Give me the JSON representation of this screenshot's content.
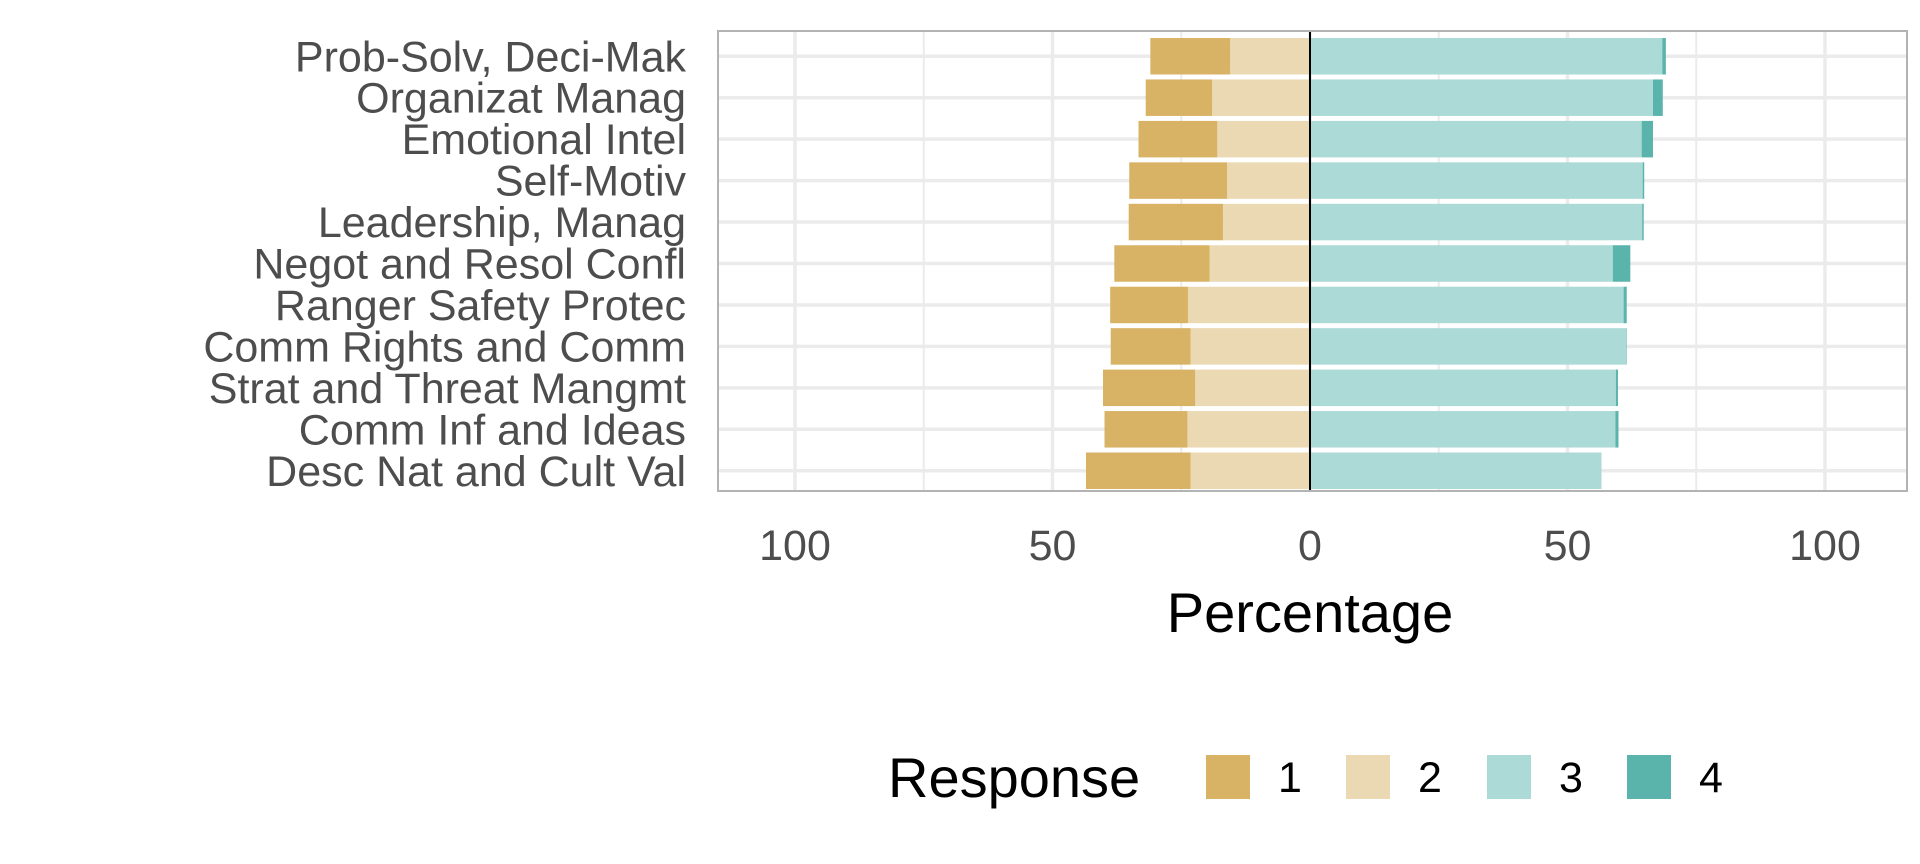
{
  "chart_data": {
    "type": "bar",
    "subtype": "diverging-stacked-horizontal",
    "title": "",
    "xlabel": "Percentage",
    "ylabel": "",
    "xlim": [
      -115,
      115
    ],
    "x_ticks": [
      -100,
      -50,
      0,
      50,
      100
    ],
    "x_tick_labels": [
      "100",
      "50",
      "0",
      "50",
      "100"
    ],
    "grid": true,
    "legend_position": "bottom",
    "legend_title": "Response",
    "categories": [
      "Prob-Solv, Deci-Mak",
      "Organizat Manag",
      "Emotional Intel",
      "Self-Motiv",
      "Leadership, Manag",
      "Negot and Resol Confl",
      "Ranger Safety Protec",
      "Comm Rights and Comm",
      "Strat and Threat Mangmt",
      "Comm Inf and Ideas",
      "Desc Nat and Cult Val"
    ],
    "series": [
      {
        "name": "1",
        "color": "#d8b365",
        "side": "negative",
        "values": [
          15.5,
          12.9,
          15.3,
          19.0,
          18.3,
          18.5,
          15.1,
          15.5,
          17.9,
          16.1,
          20.3
        ]
      },
      {
        "name": "2",
        "color": "#ebd9b3",
        "side": "negative",
        "values": [
          15.5,
          19.0,
          18.0,
          16.1,
          16.9,
          19.5,
          23.7,
          23.2,
          22.3,
          23.8,
          23.2
        ]
      },
      {
        "name": "3",
        "color": "#acdad6",
        "side": "positive",
        "values": [
          68.4,
          66.6,
          64.4,
          64.6,
          64.5,
          58.8,
          60.9,
          61.4,
          59.4,
          59.3,
          56.6
        ]
      },
      {
        "name": "4",
        "color": "#5ab4ac",
        "side": "positive",
        "values": [
          0.7,
          1.9,
          2.2,
          0.3,
          0.3,
          3.4,
          0.6,
          0.1,
          0.4,
          0.6,
          0.0
        ]
      }
    ]
  }
}
